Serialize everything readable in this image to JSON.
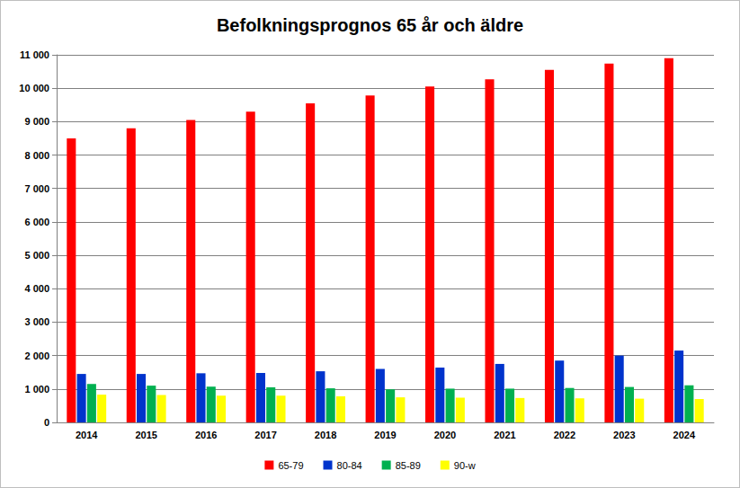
{
  "chart_data": {
    "type": "bar",
    "title": "Befolkningsprognos 65 år och äldre",
    "categories": [
      "2014",
      "2015",
      "2016",
      "2017",
      "2018",
      "2019",
      "2020",
      "2021",
      "2022",
      "2023",
      "2024"
    ],
    "series": [
      {
        "name": "65-79",
        "color": "#ff0000",
        "values": [
          8500,
          8800,
          9050,
          9300,
          9550,
          9780,
          10050,
          10270,
          10550,
          10740,
          10900
        ]
      },
      {
        "name": "80-84",
        "color": "#0033cc",
        "values": [
          1450,
          1450,
          1470,
          1480,
          1530,
          1600,
          1640,
          1750,
          1850,
          2000,
          2150
        ]
      },
      {
        "name": "85-89",
        "color": "#00b050",
        "values": [
          1150,
          1100,
          1070,
          1050,
          1020,
          990,
          1010,
          1010,
          1030,
          1060,
          1110
        ]
      },
      {
        "name": "90-w",
        "color": "#ffff00",
        "values": [
          830,
          820,
          800,
          800,
          780,
          750,
          740,
          730,
          720,
          710,
          700
        ]
      }
    ],
    "ylim": [
      0,
      11000
    ],
    "yticks": [
      0,
      {
        "value": 1000,
        "label": "1 000"
      },
      {
        "value": 2000,
        "label": "2 000"
      },
      {
        "value": 3000,
        "label": "3 000"
      },
      {
        "value": 4000,
        "label": "4 000"
      },
      {
        "value": 5000,
        "label": "5 000"
      },
      {
        "value": 6000,
        "label": "6 000"
      },
      {
        "value": 7000,
        "label": "7 000"
      },
      {
        "value": 8000,
        "label": "8 000"
      },
      {
        "value": 9000,
        "label": "9 000"
      },
      {
        "value": 10000,
        "label": "10 000"
      },
      {
        "value": 11000,
        "label": "11 000"
      }
    ],
    "grid": true,
    "legend": "bottom"
  }
}
